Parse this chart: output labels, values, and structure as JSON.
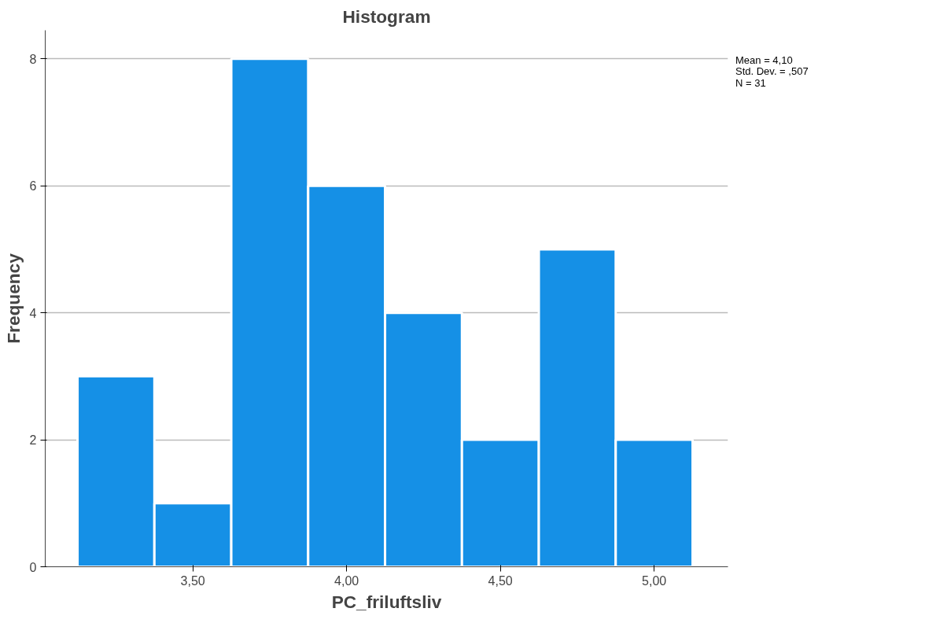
{
  "chart_data": {
    "type": "histogram",
    "title": "Histogram",
    "xlabel": "PC_friluftsliv",
    "ylabel": "Frequency",
    "bins": [
      3.125,
      3.375,
      3.625,
      3.875,
      4.125,
      4.375,
      4.625,
      4.875,
      5.125
    ],
    "values": [
      3,
      1,
      8,
      6,
      4,
      2,
      5,
      2
    ],
    "color": "#1590e6",
    "xlim": [
      3.02,
      5.24
    ],
    "ylim": [
      0,
      8.45
    ],
    "xticks": [
      {
        "value": 3.5,
        "label": "3,50"
      },
      {
        "value": 4.0,
        "label": "4,00"
      },
      {
        "value": 4.5,
        "label": "4,50"
      },
      {
        "value": 5.0,
        "label": "5,00"
      }
    ],
    "yticks": [
      0,
      2,
      4,
      6,
      8
    ],
    "grid": "y",
    "annotations": [
      "Mean = 4,10",
      "Std. Dev. = ,507",
      "N = 31"
    ]
  }
}
